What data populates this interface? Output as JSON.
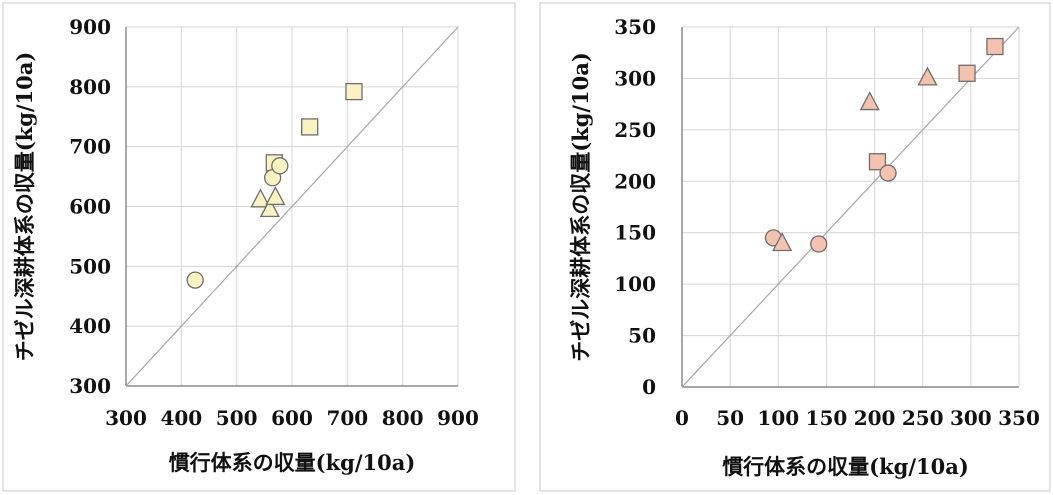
{
  "colors": {
    "left_fill": "#fbf2c2",
    "right_fill": "#f6c2b0"
  },
  "chart_data": [
    {
      "type": "scatter",
      "title": "",
      "xlabel": "慣行体系の収量(kg/10a)",
      "ylabel": "チゼル深耕体系の収量(kg/10a)",
      "xlim": [
        300,
        900
      ],
      "ylim": [
        300,
        900
      ],
      "xticks": [
        "300",
        "400",
        "500",
        "600",
        "700",
        "800",
        "900"
      ],
      "yticks": [
        "300",
        "400",
        "500",
        "600",
        "700",
        "800",
        "900"
      ],
      "xtick_values": [
        300,
        400,
        500,
        600,
        700,
        800,
        900
      ],
      "ytick_values": [
        300,
        400,
        500,
        600,
        700,
        800,
        900
      ],
      "grid": true,
      "reference_line": "1:1",
      "series": [
        {
          "marker": "square",
          "points": [
            [
              632,
              733
            ],
            [
              712,
              792
            ],
            [
              568,
              673
            ]
          ]
        },
        {
          "marker": "circle",
          "points": [
            [
              425,
              477
            ],
            [
              565,
              648
            ],
            [
              578,
              668
            ]
          ]
        },
        {
          "marker": "triangle",
          "points": [
            [
              543,
              612
            ],
            [
              560,
              596
            ],
            [
              570,
              616
            ]
          ]
        }
      ]
    },
    {
      "type": "scatter",
      "title": "",
      "xlabel": "慣行体系の収量(kg/10a)",
      "ylabel": "チゼル深耕体系の収量(kg/10a)",
      "xlim": [
        0,
        350
      ],
      "ylim": [
        0,
        350
      ],
      "xticks": [
        "0",
        "50",
        "100",
        "150",
        "200",
        "250",
        "300",
        "350"
      ],
      "yticks": [
        "0",
        "50",
        "100",
        "150",
        "200",
        "250",
        "300",
        "350"
      ],
      "xtick_values": [
        0,
        50,
        100,
        150,
        200,
        250,
        300,
        350
      ],
      "ytick_values": [
        0,
        50,
        100,
        150,
        200,
        250,
        300,
        350
      ],
      "grid": true,
      "reference_line": "1:1",
      "series": [
        {
          "marker": "square",
          "points": [
            [
              325,
              331
            ],
            [
              296,
              305
            ],
            [
              203,
              219
            ]
          ]
        },
        {
          "marker": "circle",
          "points": [
            [
              95,
              145
            ],
            [
              142,
              139
            ],
            [
              214,
              208
            ]
          ]
        },
        {
          "marker": "triangle",
          "points": [
            [
              104,
              140
            ],
            [
              195,
              277
            ],
            [
              255,
              301
            ]
          ]
        }
      ]
    }
  ]
}
